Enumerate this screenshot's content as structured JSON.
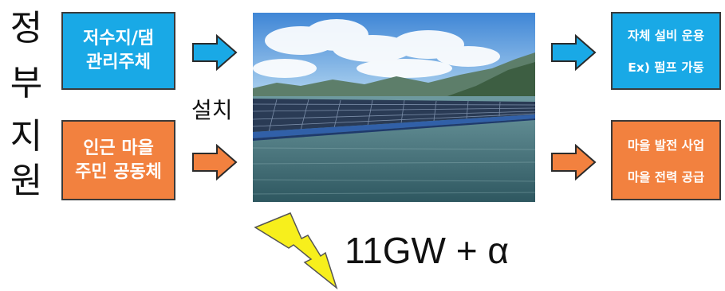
{
  "side_label": [
    "정",
    "부",
    "지",
    "원"
  ],
  "left_boxes": {
    "top": [
      "저수지/댐",
      "관리주체"
    ],
    "bottom": [
      "인근 마을",
      "주민 공동체"
    ]
  },
  "install_label": "설치",
  "right_boxes": {
    "top": [
      "자체 설비 운용",
      "Ex) 펌프 가동"
    ],
    "bottom": [
      "마을 발전 사업",
      "마을 전력 공급"
    ]
  },
  "capacity": "11GW + α",
  "photo_subject": "floating solar panels on reservoir",
  "colors": {
    "blue_box": "#19a9e6",
    "orange_box": "#f2813f",
    "bolt": "#f7ef1c"
  }
}
